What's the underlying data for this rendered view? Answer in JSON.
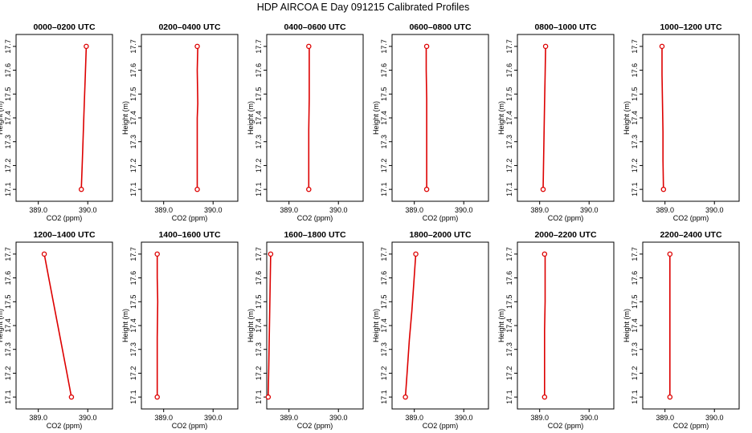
{
  "page_title": "HDP AIRCOA E  Day 091215  Calibrated Profiles",
  "colors": {
    "line": "#dd0000",
    "axis": "#000000"
  },
  "chart_data": [
    {
      "type": "line",
      "title": "0000–0200 UTC",
      "xlabel": "CO2 (ppm)",
      "ylabel": "Height (m)",
      "xlim": [
        388.55,
        390.5
      ],
      "xticks": [
        389.0,
        390.0
      ],
      "xtick_labels": [
        "389.0",
        "390.0"
      ],
      "ylim": [
        17.05,
        17.75
      ],
      "yticks": [
        17.1,
        17.2,
        17.3,
        17.4,
        17.5,
        17.6,
        17.7
      ],
      "ytick_labels": [
        "17.1",
        "17.2",
        "17.3",
        "17.4",
        "17.5",
        "17.6",
        "17.7"
      ],
      "endpoints": [
        {
          "x": 389.87,
          "y": 17.1
        },
        {
          "x": 389.97,
          "y": 17.7
        }
      ],
      "x": [
        389.87,
        389.89,
        389.91,
        389.93,
        389.95,
        389.97
      ],
      "y": [
        17.1,
        17.22,
        17.34,
        17.46,
        17.58,
        17.7
      ]
    },
    {
      "type": "line",
      "title": "0200–0400 UTC",
      "xlabel": "CO2 (ppm)",
      "ylabel": "Height (m)",
      "xlim": [
        388.55,
        390.5
      ],
      "xticks": [
        389.0,
        390.0
      ],
      "xtick_labels": [
        "389.0",
        "390.0"
      ],
      "ylim": [
        17.05,
        17.75
      ],
      "yticks": [
        17.1,
        17.2,
        17.3,
        17.4,
        17.5,
        17.6,
        17.7
      ],
      "ytick_labels": [
        "17.1",
        "17.2",
        "17.3",
        "17.4",
        "17.5",
        "17.6",
        "17.7"
      ],
      "endpoints": [
        {
          "x": 389.68,
          "y": 17.1
        },
        {
          "x": 389.68,
          "y": 17.7
        }
      ],
      "x": [
        389.68,
        389.68,
        389.68,
        389.69,
        389.68,
        389.69
      ],
      "y": [
        17.1,
        17.25,
        17.4,
        17.46,
        17.6,
        17.7
      ]
    },
    {
      "type": "line",
      "title": "0400–0600 UTC",
      "xlabel": "CO2 (ppm)",
      "ylabel": "Height (m)",
      "xlim": [
        388.55,
        390.5
      ],
      "xticks": [
        389.0,
        390.0
      ],
      "xtick_labels": [
        "389.0",
        "390.0"
      ],
      "ylim": [
        17.05,
        17.75
      ],
      "yticks": [
        17.1,
        17.2,
        17.3,
        17.4,
        17.5,
        17.6,
        17.7
      ],
      "ytick_labels": [
        "17.1",
        "17.2",
        "17.3",
        "17.4",
        "17.5",
        "17.6",
        "17.7"
      ],
      "endpoints": [
        {
          "x": 389.4,
          "y": 17.1
        },
        {
          "x": 389.4,
          "y": 17.7
        }
      ],
      "x": [
        389.4,
        389.4,
        389.4,
        389.41,
        389.41,
        389.41
      ],
      "y": [
        17.1,
        17.2,
        17.35,
        17.48,
        17.6,
        17.7
      ]
    },
    {
      "type": "line",
      "title": "0600–0800 UTC",
      "xlabel": "CO2 (ppm)",
      "ylabel": "Height (m)",
      "xlim": [
        388.55,
        390.5
      ],
      "xticks": [
        389.0,
        390.0
      ],
      "xtick_labels": [
        "389.0",
        "390.0"
      ],
      "ylim": [
        17.05,
        17.75
      ],
      "yticks": [
        17.1,
        17.2,
        17.3,
        17.4,
        17.5,
        17.6,
        17.7
      ],
      "ytick_labels": [
        "17.1",
        "17.2",
        "17.3",
        "17.4",
        "17.5",
        "17.6",
        "17.7"
      ],
      "endpoints": [
        {
          "x": 389.25,
          "y": 17.1
        },
        {
          "x": 389.25,
          "y": 17.7
        }
      ],
      "x": [
        389.25,
        389.25,
        389.25,
        389.25,
        389.24,
        389.24
      ],
      "y": [
        17.1,
        17.22,
        17.35,
        17.48,
        17.6,
        17.7
      ]
    },
    {
      "type": "line",
      "title": "0800–1000 UTC",
      "xlabel": "CO2 (ppm)",
      "ylabel": "Height (m)",
      "xlim": [
        388.55,
        390.5
      ],
      "xticks": [
        389.0,
        390.0
      ],
      "xtick_labels": [
        "389.0",
        "390.0"
      ],
      "ylim": [
        17.05,
        17.75
      ],
      "yticks": [
        17.1,
        17.2,
        17.3,
        17.4,
        17.5,
        17.6,
        17.7
      ],
      "ytick_labels": [
        "17.1",
        "17.2",
        "17.3",
        "17.4",
        "17.5",
        "17.6",
        "17.7"
      ],
      "endpoints": [
        {
          "x": 389.07,
          "y": 17.1
        },
        {
          "x": 389.12,
          "y": 17.7
        }
      ],
      "x": [
        389.07,
        389.08,
        389.09,
        389.1,
        389.11,
        389.12
      ],
      "y": [
        17.1,
        17.22,
        17.34,
        17.46,
        17.58,
        17.7
      ]
    },
    {
      "type": "line",
      "title": "1000–1200 UTC",
      "xlabel": "CO2 (ppm)",
      "ylabel": "Height (m)",
      "xlim": [
        388.55,
        390.5
      ],
      "xticks": [
        389.0,
        390.0
      ],
      "xtick_labels": [
        "389.0",
        "390.0"
      ],
      "ylim": [
        17.05,
        17.75
      ],
      "yticks": [
        17.1,
        17.2,
        17.3,
        17.4,
        17.5,
        17.6,
        17.7
      ],
      "ytick_labels": [
        "17.1",
        "17.2",
        "17.3",
        "17.4",
        "17.5",
        "17.6",
        "17.7"
      ],
      "endpoints": [
        {
          "x": 388.97,
          "y": 17.1
        },
        {
          "x": 388.94,
          "y": 17.7
        }
      ],
      "x": [
        388.97,
        388.96,
        388.96,
        388.95,
        388.94,
        388.94
      ],
      "y": [
        17.1,
        17.22,
        17.34,
        17.46,
        17.58,
        17.7
      ]
    },
    {
      "type": "line",
      "title": "1200–1400 UTC",
      "xlabel": "CO2 (ppm)",
      "ylabel": "Height (m)",
      "xlim": [
        388.55,
        390.5
      ],
      "xticks": [
        389.0,
        390.0
      ],
      "xtick_labels": [
        "389.0",
        "390.0"
      ],
      "ylim": [
        17.05,
        17.75
      ],
      "yticks": [
        17.1,
        17.2,
        17.3,
        17.4,
        17.5,
        17.6,
        17.7
      ],
      "ytick_labels": [
        "17.1",
        "17.2",
        "17.3",
        "17.4",
        "17.5",
        "17.6",
        "17.7"
      ],
      "endpoints": [
        {
          "x": 389.67,
          "y": 17.1
        },
        {
          "x": 389.12,
          "y": 17.7
        }
      ],
      "x": [
        389.67,
        389.56,
        389.45,
        389.34,
        389.23,
        389.12
      ],
      "y": [
        17.1,
        17.22,
        17.34,
        17.46,
        17.58,
        17.7
      ]
    },
    {
      "type": "line",
      "title": "1400–1600 UTC",
      "xlabel": "CO2 (ppm)",
      "ylabel": "Height (m)",
      "xlim": [
        388.55,
        390.5
      ],
      "xticks": [
        389.0,
        390.0
      ],
      "xtick_labels": [
        "389.0",
        "390.0"
      ],
      "ylim": [
        17.05,
        17.75
      ],
      "yticks": [
        17.1,
        17.2,
        17.3,
        17.4,
        17.5,
        17.6,
        17.7
      ],
      "ytick_labels": [
        "17.1",
        "17.2",
        "17.3",
        "17.4",
        "17.5",
        "17.6",
        "17.7"
      ],
      "endpoints": [
        {
          "x": 388.87,
          "y": 17.1
        },
        {
          "x": 388.87,
          "y": 17.7
        }
      ],
      "x": [
        388.87,
        388.87,
        388.87,
        388.88,
        388.87,
        388.87
      ],
      "y": [
        17.1,
        17.22,
        17.35,
        17.5,
        17.6,
        17.7
      ]
    },
    {
      "type": "line",
      "title": "1600–1800 UTC",
      "xlabel": "CO2 (ppm)",
      "ylabel": "Height (m)",
      "xlim": [
        388.55,
        390.5
      ],
      "xticks": [
        389.0,
        390.0
      ],
      "xtick_labels": [
        "389.0",
        "390.0"
      ],
      "ylim": [
        17.05,
        17.75
      ],
      "yticks": [
        17.1,
        17.2,
        17.3,
        17.4,
        17.5,
        17.6,
        17.7
      ],
      "ytick_labels": [
        "17.1",
        "17.2",
        "17.3",
        "17.4",
        "17.5",
        "17.6",
        "17.7"
      ],
      "endpoints": [
        {
          "x": 388.58,
          "y": 17.1
        },
        {
          "x": 388.63,
          "y": 17.7
        }
      ],
      "x": [
        388.58,
        388.59,
        388.6,
        388.61,
        388.62,
        388.63
      ],
      "y": [
        17.1,
        17.22,
        17.34,
        17.46,
        17.58,
        17.7
      ]
    },
    {
      "type": "line",
      "title": "1800–2000 UTC",
      "xlabel": "CO2 (ppm)",
      "ylabel": "Height (m)",
      "xlim": [
        388.55,
        390.5
      ],
      "xticks": [
        389.0,
        390.0
      ],
      "xtick_labels": [
        "389.0",
        "390.0"
      ],
      "ylim": [
        17.05,
        17.75
      ],
      "yticks": [
        17.1,
        17.2,
        17.3,
        17.4,
        17.5,
        17.6,
        17.7
      ],
      "ytick_labels": [
        "17.1",
        "17.2",
        "17.3",
        "17.4",
        "17.5",
        "17.6",
        "17.7"
      ],
      "endpoints": [
        {
          "x": 388.82,
          "y": 17.1
        },
        {
          "x": 389.03,
          "y": 17.7
        }
      ],
      "x": [
        388.82,
        388.86,
        388.9,
        388.95,
        388.99,
        389.03
      ],
      "y": [
        17.1,
        17.22,
        17.34,
        17.46,
        17.58,
        17.7
      ]
    },
    {
      "type": "line",
      "title": "2000–2200 UTC",
      "xlabel": "CO2 (ppm)",
      "ylabel": "Height (m)",
      "xlim": [
        388.55,
        390.5
      ],
      "xticks": [
        389.0,
        390.0
      ],
      "xtick_labels": [
        "389.0",
        "390.0"
      ],
      "ylim": [
        17.05,
        17.75
      ],
      "yticks": [
        17.1,
        17.2,
        17.3,
        17.4,
        17.5,
        17.6,
        17.7
      ],
      "ytick_labels": [
        "17.1",
        "17.2",
        "17.3",
        "17.4",
        "17.5",
        "17.6",
        "17.7"
      ],
      "endpoints": [
        {
          "x": 389.1,
          "y": 17.1
        },
        {
          "x": 389.1,
          "y": 17.7
        }
      ],
      "x": [
        389.1,
        389.1,
        389.1,
        389.11,
        389.11,
        389.11
      ],
      "y": [
        17.1,
        17.25,
        17.38,
        17.5,
        17.6,
        17.7
      ]
    },
    {
      "type": "line",
      "title": "2200–2400 UTC",
      "xlabel": "CO2 (ppm)",
      "ylabel": "Height (m)",
      "xlim": [
        388.55,
        390.5
      ],
      "xticks": [
        389.0,
        390.0
      ],
      "xtick_labels": [
        "389.0",
        "390.0"
      ],
      "ylim": [
        17.05,
        17.75
      ],
      "yticks": [
        17.1,
        17.2,
        17.3,
        17.4,
        17.5,
        17.6,
        17.7
      ],
      "ytick_labels": [
        "17.1",
        "17.2",
        "17.3",
        "17.4",
        "17.5",
        "17.6",
        "17.7"
      ],
      "endpoints": [
        {
          "x": 389.1,
          "y": 17.1
        },
        {
          "x": 389.1,
          "y": 17.7
        }
      ],
      "x": [
        389.1,
        389.1,
        389.1,
        389.1,
        389.1,
        389.1
      ],
      "y": [
        17.1,
        17.22,
        17.34,
        17.46,
        17.58,
        17.7
      ]
    }
  ]
}
